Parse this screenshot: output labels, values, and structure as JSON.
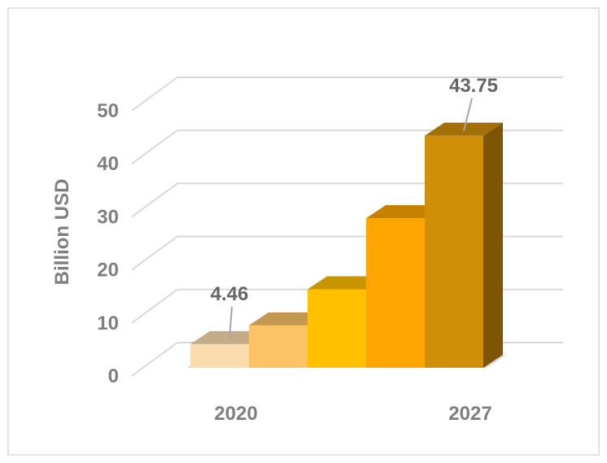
{
  "chart_data": {
    "type": "bar",
    "style": "3d-column",
    "title": "",
    "ylabel": "Billion USD",
    "xlabel": "",
    "ylim": [
      0,
      50
    ],
    "y_ticks": [
      "0",
      "10",
      "20",
      "30",
      "40",
      "50"
    ],
    "y_tick_values": [
      0,
      10,
      20,
      30,
      40,
      50
    ],
    "grid": true,
    "legend": "none",
    "categories": [
      "2020",
      "",
      "",
      "",
      "2027"
    ],
    "values": [
      4.46,
      8.0,
      14.8,
      28.2,
      43.75
    ],
    "data_labels": [
      "4.46",
      "",
      "",
      "",
      "43.75"
    ],
    "colors": [
      "#fbdcae",
      "#fbc266",
      "#ffc000",
      "#ffa500",
      "#d18e09"
    ]
  }
}
